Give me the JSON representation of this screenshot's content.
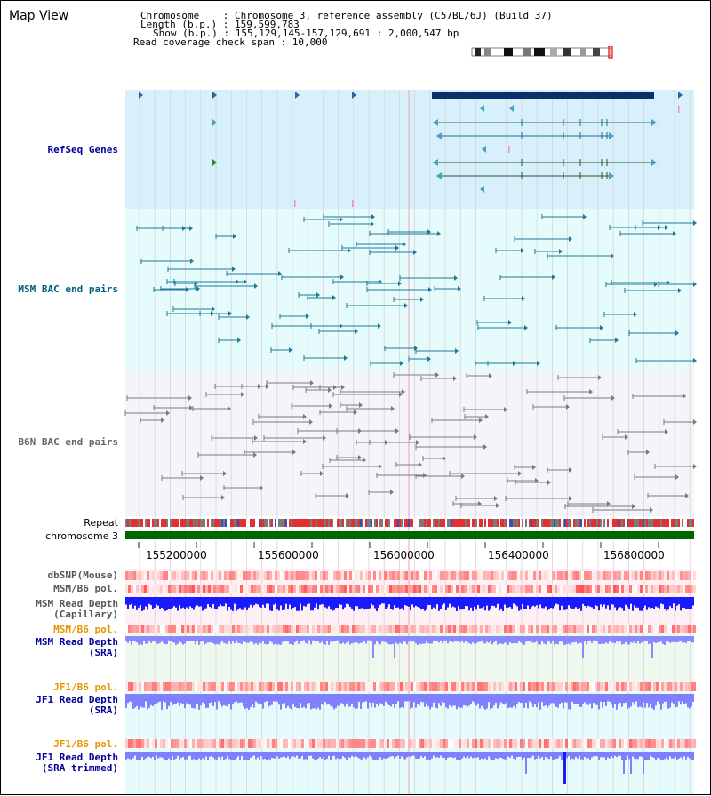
{
  "title": "Map View",
  "info": {
    "chromosome": "Chromosome    : Chromosome 3, reference assembly (C57BL/6J) (Build 37)",
    "length": "Length (b.p.) : 159,599,783",
    "show": "Show (b.p.) : 155,129,145-157,129,691 : 2,000,547 bp",
    "span": "Read coverage check span : 10,000"
  },
  "tracks": {
    "refseq": "RefSeq Genes",
    "msm_bac": "MSM BAC end pairs",
    "b6n_bac": "B6N BAC end pairs",
    "repeat": "Repeat",
    "chromosome": "chromosome 3",
    "dbsnp": "dbSNP(Mouse)",
    "msm_b6_pol": "MSM/B6 pol.",
    "msm_depth_cap_1": "MSM Read Depth",
    "msm_depth_cap_2": "(Capillary)",
    "msm_b6_pol2": "MSM/B6 pol.",
    "msm_depth_sra_1": "MSM Read Depth",
    "msm_depth_sra_2": "(SRA)",
    "jf1_b6_pol": "JF1/B6 pol.",
    "jf1_depth_sra_1": "JF1 Read Depth",
    "jf1_depth_sra_2": "(SRA)",
    "jf1_b6_pol2": "JF1/B6 pol.",
    "jf1_depth_trim_1": "JF1 Read Depth",
    "jf1_depth_trim_2": "(SRA trimmed)"
  },
  "axis": {
    "ticks": [
      "155200000",
      "155600000",
      "156000000",
      "156400000",
      "156800000"
    ]
  },
  "colors": {
    "refseq_bg": "#d8f0fb",
    "msm_bg": "#e6fbfb",
    "b6n_bg": "#f3f5fb",
    "label_navy": "#000099",
    "label_teal": "#006080",
    "label_gray": "#666666",
    "label_orange": "#e69500",
    "chromosome_green": "#006600",
    "depth_blue": "#1a1aff",
    "depth_lightblue": "#8080ff"
  }
}
